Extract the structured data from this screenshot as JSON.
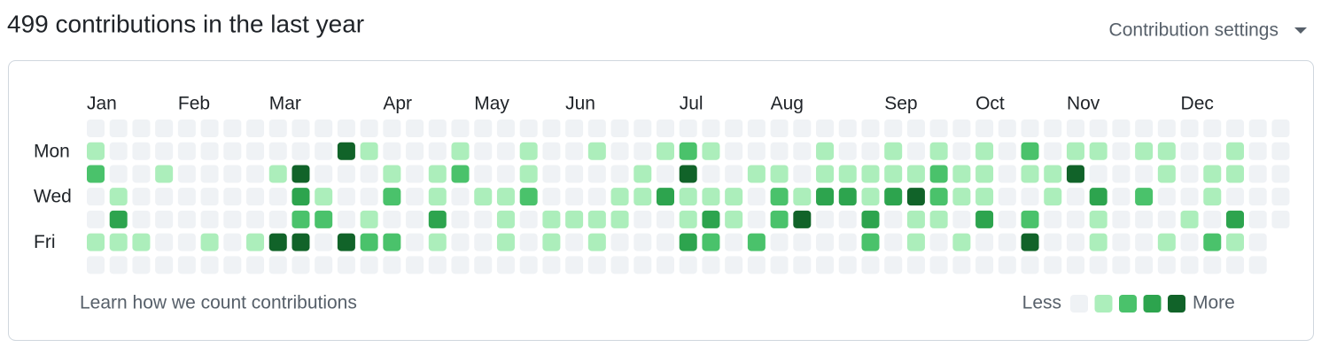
{
  "header": {
    "title": "499 contributions in the last year",
    "settings": "Contribution settings"
  },
  "graph": {
    "months": [
      "Jan",
      null,
      null,
      null,
      "Feb",
      null,
      null,
      null,
      "Mar",
      null,
      null,
      null,
      null,
      "Apr",
      null,
      null,
      null,
      "May",
      null,
      null,
      null,
      "Jun",
      null,
      null,
      null,
      null,
      "Jul",
      null,
      null,
      null,
      "Aug",
      null,
      null,
      null,
      null,
      "Sep",
      null,
      null,
      null,
      "Oct",
      null,
      null,
      null,
      "Nov",
      null,
      null,
      null,
      null,
      "Dec",
      null,
      null,
      null,
      null
    ],
    "days": [
      null,
      "Mon",
      null,
      "Wed",
      null,
      "Fri",
      null
    ],
    "palette": [
      "#eff2f5",
      "#aceebb",
      "#4ac26b",
      "#2da44e",
      "#116329"
    ],
    "levels": [
      [
        0,
        1,
        2,
        0,
        0,
        1,
        0
      ],
      [
        0,
        0,
        0,
        1,
        3,
        1,
        0
      ],
      [
        0,
        0,
        0,
        0,
        0,
        1,
        0
      ],
      [
        0,
        0,
        1,
        0,
        0,
        0,
        0
      ],
      [
        0,
        0,
        0,
        0,
        0,
        0,
        0
      ],
      [
        0,
        0,
        0,
        0,
        0,
        1,
        0
      ],
      [
        0,
        0,
        0,
        0,
        0,
        0,
        0
      ],
      [
        0,
        0,
        0,
        0,
        0,
        1,
        0
      ],
      [
        0,
        0,
        1,
        0,
        0,
        4,
        0
      ],
      [
        0,
        0,
        4,
        3,
        2,
        4,
        0
      ],
      [
        0,
        0,
        0,
        1,
        2,
        0,
        0
      ],
      [
        0,
        4,
        0,
        0,
        0,
        4,
        0
      ],
      [
        0,
        1,
        0,
        0,
        1,
        2,
        0
      ],
      [
        0,
        0,
        1,
        2,
        0,
        2,
        0
      ],
      [
        0,
        0,
        0,
        0,
        0,
        0,
        0
      ],
      [
        0,
        0,
        1,
        1,
        3,
        1,
        0
      ],
      [
        0,
        1,
        2,
        0,
        0,
        0,
        0
      ],
      [
        0,
        0,
        0,
        1,
        0,
        0,
        0
      ],
      [
        0,
        0,
        0,
        1,
        1,
        1,
        0
      ],
      [
        0,
        1,
        1,
        2,
        0,
        0,
        0
      ],
      [
        0,
        0,
        0,
        0,
        1,
        1,
        0
      ],
      [
        0,
        0,
        0,
        0,
        1,
        0,
        0
      ],
      [
        0,
        1,
        0,
        0,
        1,
        1,
        0
      ],
      [
        0,
        0,
        0,
        1,
        1,
        0,
        0
      ],
      [
        0,
        0,
        1,
        1,
        0,
        0,
        0
      ],
      [
        0,
        1,
        0,
        3,
        0,
        0,
        0
      ],
      [
        0,
        2,
        4,
        1,
        1,
        3,
        0
      ],
      [
        0,
        1,
        0,
        1,
        3,
        2,
        0
      ],
      [
        0,
        0,
        0,
        1,
        1,
        0,
        0
      ],
      [
        0,
        0,
        1,
        0,
        0,
        2,
        0
      ],
      [
        0,
        0,
        1,
        2,
        2,
        0,
        0
      ],
      [
        0,
        0,
        0,
        1,
        4,
        0,
        0
      ],
      [
        0,
        1,
        1,
        3,
        0,
        0,
        0
      ],
      [
        0,
        0,
        1,
        3,
        0,
        0,
        0
      ],
      [
        0,
        0,
        1,
        1,
        3,
        2,
        0
      ],
      [
        0,
        1,
        1,
        3,
        0,
        0,
        0
      ],
      [
        0,
        0,
        1,
        4,
        1,
        1,
        0
      ],
      [
        0,
        1,
        2,
        2,
        1,
        0,
        0
      ],
      [
        0,
        0,
        1,
        1,
        0,
        1,
        0
      ],
      [
        0,
        1,
        1,
        1,
        3,
        0,
        0
      ],
      [
        0,
        0,
        0,
        0,
        0,
        0,
        0
      ],
      [
        0,
        2,
        1,
        0,
        2,
        4,
        0
      ],
      [
        0,
        0,
        1,
        1,
        0,
        0,
        0
      ],
      [
        0,
        1,
        4,
        0,
        0,
        0,
        0
      ],
      [
        0,
        1,
        0,
        3,
        1,
        1,
        0
      ],
      [
        0,
        0,
        0,
        0,
        0,
        0,
        0
      ],
      [
        0,
        1,
        0,
        2,
        0,
        0,
        0
      ],
      [
        0,
        1,
        1,
        0,
        0,
        1,
        0
      ],
      [
        0,
        0,
        0,
        0,
        1,
        0,
        0
      ],
      [
        0,
        0,
        1,
        1,
        0,
        2,
        0
      ],
      [
        0,
        1,
        1,
        0,
        3,
        1,
        0
      ],
      [
        0,
        0,
        0,
        0,
        0,
        0,
        0
      ],
      [
        0,
        0,
        0,
        0,
        0
      ]
    ]
  },
  "footer": {
    "link": "Learn how we count contributions",
    "legend": {
      "less": "Less",
      "more": "More",
      "levels": [
        0,
        1,
        2,
        3,
        4
      ]
    }
  }
}
